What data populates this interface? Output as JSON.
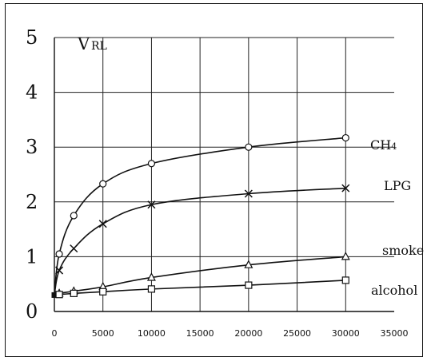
{
  "chart_data": {
    "type": "line",
    "ylabel_main": "V",
    "ylabel_sub": "RL",
    "ylim": [
      0,
      5
    ],
    "xlim": [
      0,
      35000
    ],
    "yticks": [
      0,
      1,
      2,
      3,
      4,
      5
    ],
    "xticks": [
      0,
      5000,
      10000,
      15000,
      20000,
      25000,
      30000,
      35000
    ],
    "grid": true,
    "series": [
      {
        "name": "CH4",
        "name_main": "CH",
        "name_sub": "4",
        "marker": "circle",
        "x": [
          0,
          500,
          2000,
          5000,
          10000,
          20000,
          30000
        ],
        "y": [
          0.3,
          1.05,
          1.75,
          2.33,
          2.7,
          3.0,
          3.17
        ]
      },
      {
        "name": "LPG",
        "marker": "x",
        "x": [
          0,
          500,
          2000,
          5000,
          10000,
          20000,
          30000
        ],
        "y": [
          0.3,
          0.75,
          1.15,
          1.6,
          1.95,
          2.15,
          2.25
        ]
      },
      {
        "name": "smoke",
        "marker": "triangle",
        "x": [
          0,
          500,
          2000,
          5000,
          10000,
          20000,
          30000
        ],
        "y": [
          0.3,
          0.33,
          0.37,
          0.45,
          0.62,
          0.85,
          1.0
        ]
      },
      {
        "name": "alcohol",
        "marker": "square",
        "x": [
          0,
          500,
          2000,
          5000,
          10000,
          20000,
          30000
        ],
        "y": [
          0.3,
          0.31,
          0.33,
          0.36,
          0.41,
          0.48,
          0.57
        ]
      }
    ]
  }
}
